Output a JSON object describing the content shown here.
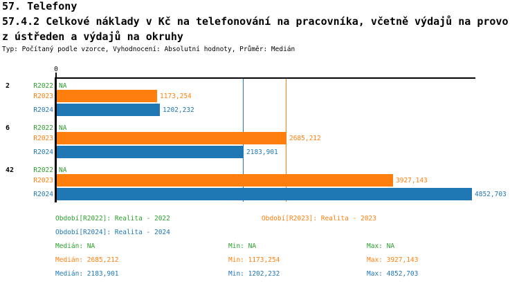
{
  "header": {
    "title": "57. Telefony",
    "subtitle_line1": "57.4.2 Celkové náklady v Kč na telefonování na pracovníka, včetně výdajů na provo",
    "subtitle_line2": "z ústředen a výdajů na okruhy",
    "meta": "Typ: Počítaný podle vzorce, Vyhodnocení: Absolutní hodnoty, Průměr: Medián"
  },
  "colors": {
    "r2022": "#2ca02c",
    "r2023": "#ff7f0e",
    "r2024": "#1f77b4",
    "axis": "#000000",
    "background": "#ffffff"
  },
  "chart_data": {
    "type": "bar",
    "orientation": "horizontal",
    "origin_label": "0",
    "categories": [
      "2",
      "6",
      "42"
    ],
    "xlim": [
      0,
      4901
    ],
    "grid": false,
    "series": [
      {
        "name": "R2022",
        "color": "#2ca02c",
        "values": [
          null,
          null,
          null
        ],
        "labels": [
          "NA",
          "NA",
          "NA"
        ]
      },
      {
        "name": "R2023",
        "color": "#ff7f0e",
        "values": [
          1173.254,
          2685.212,
          3927.143
        ],
        "labels": [
          "1173,254",
          "2685,212",
          "3927,143"
        ]
      },
      {
        "name": "R2024",
        "color": "#1f77b4",
        "values": [
          1202.232,
          2183.901,
          4852.703
        ],
        "labels": [
          "1202,232",
          "2183,901",
          "4852,703"
        ]
      }
    ],
    "median_lines": [
      {
        "series": "R2023",
        "value": 2685.212,
        "color": "#ff7f0e"
      },
      {
        "series": "R2024",
        "value": 2183.901,
        "color": "#1f77b4"
      }
    ]
  },
  "legend": {
    "items": [
      {
        "id": "r2022",
        "label": "Období[R2022]: Realita - 2022"
      },
      {
        "id": "r2023",
        "label": "Období[R2023]: Realita - 2023"
      },
      {
        "id": "r2024",
        "label": "Období[R2024]: Realita - 2024"
      }
    ]
  },
  "stats": {
    "rows": [
      {
        "series": "R2022",
        "median": "Medián: NA",
        "min": "Min: NA",
        "max": "Max: NA"
      },
      {
        "series": "R2023",
        "median": "Medián: 2685,212",
        "min": "Min: 1173,254",
        "max": "Max: 3927,143"
      },
      {
        "series": "R2024",
        "median": "Medián: 2183,901",
        "min": "Min: 1202,232",
        "max": "Max: 4852,703"
      }
    ]
  }
}
